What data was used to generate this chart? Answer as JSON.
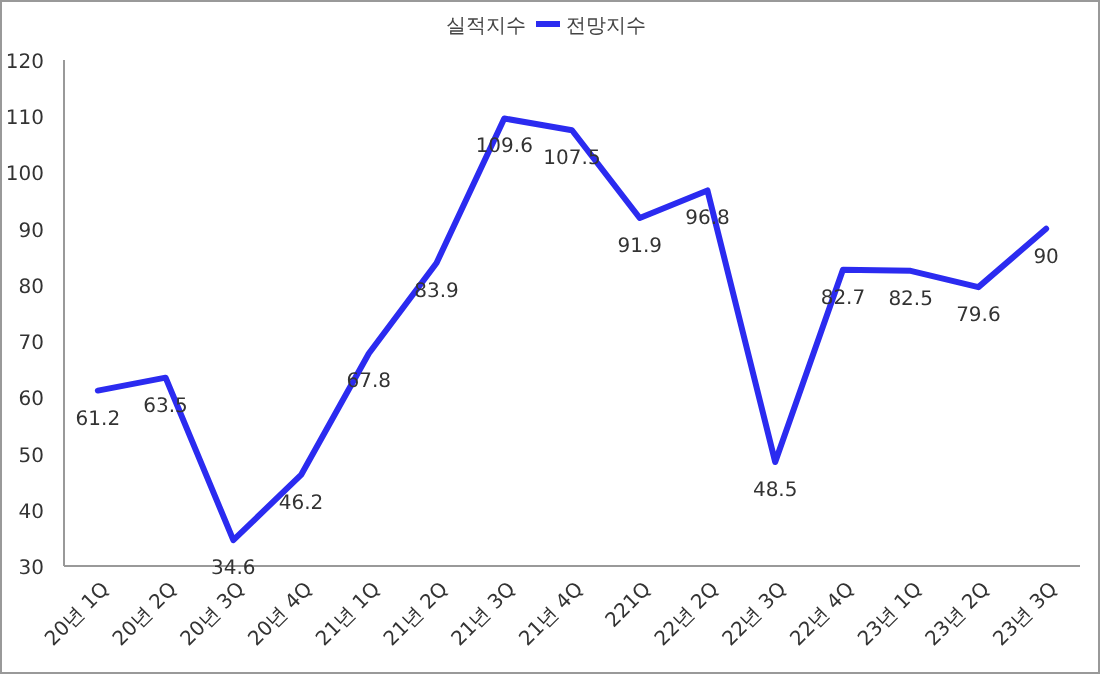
{
  "chart_data": {
    "type": "line",
    "legend_title": "실적지수",
    "legend": "top",
    "categories": [
      "20년 1Q",
      "20년 2Q",
      "20년 3Q",
      "20년 4Q",
      "21년 1Q",
      "21년 2Q",
      "21년 3Q",
      "21년 4Q",
      "221Q",
      "22년 2Q",
      "22년 3Q",
      "22년 4Q",
      "23년 1Q",
      "23년 2Q",
      "23년 3Q"
    ],
    "series": [
      {
        "name": "전망지수",
        "color": "#2b2bf0",
        "values": [
          61.2,
          63.5,
          34.6,
          46.2,
          67.8,
          83.9,
          109.6,
          107.5,
          91.9,
          96.8,
          48.5,
          82.7,
          82.5,
          79.6,
          90
        ]
      }
    ],
    "ylim": [
      30,
      120
    ],
    "yticks": [
      30,
      40,
      50,
      60,
      70,
      80,
      90,
      100,
      110,
      120
    ],
    "data_labels": true,
    "grid": false,
    "marker": "none",
    "line_style": "solid"
  }
}
